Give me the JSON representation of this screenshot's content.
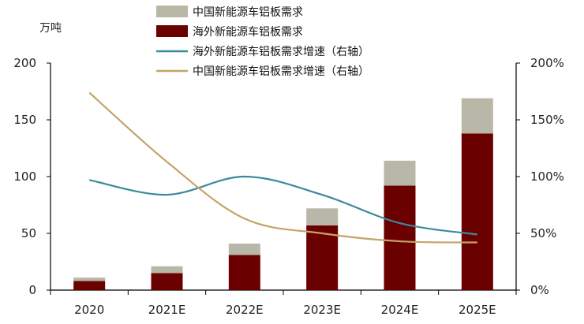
{
  "chart_data": {
    "type": "bar",
    "unit_left": "万吨",
    "categories": [
      "2020",
      "2021E",
      "2022E",
      "2023E",
      "2024E",
      "2025E"
    ],
    "stacked": true,
    "bar_series": [
      {
        "name": "海外新能源车铝板需求",
        "values": [
          8,
          15,
          31,
          57,
          92,
          138
        ],
        "color": "#6b0000"
      },
      {
        "name": "中国新能源车铝板需求",
        "values": [
          3,
          6,
          10,
          15,
          22,
          31
        ],
        "color": "#b9b8a8"
      }
    ],
    "line_series": [
      {
        "name": "海外新能源车铝板需求增速（右轴）",
        "values": [
          97,
          84,
          100,
          84,
          59,
          49
        ],
        "color": "#3a8a9a"
      },
      {
        "name": "中国新能源车铝板需求增速（右轴）",
        "values": [
          174,
          113,
          63,
          50,
          43,
          42
        ],
        "color": "#c4a468"
      }
    ],
    "legend": [
      {
        "label": "中国新能源车铝板需求",
        "kind": "box",
        "color": "#b9b8a8"
      },
      {
        "label": "海外新能源车铝板需求",
        "kind": "box",
        "color": "#6b0000"
      },
      {
        "label": "海外新能源车铝板需求增速（右轴）",
        "kind": "line",
        "color": "#3a8a9a"
      },
      {
        "label": "中国新能源车铝板需求增速（右轴）",
        "kind": "line",
        "color": "#c4a468"
      }
    ],
    "left_axis": {
      "min": 0,
      "max": 200,
      "ticks": [
        "0",
        "50",
        "100",
        "150",
        "200"
      ]
    },
    "right_axis": {
      "min": 0,
      "max": 200,
      "ticks": [
        "0%",
        "50%",
        "100%",
        "150%",
        "200%"
      ]
    },
    "grid": false,
    "legend_position": "top-center"
  }
}
